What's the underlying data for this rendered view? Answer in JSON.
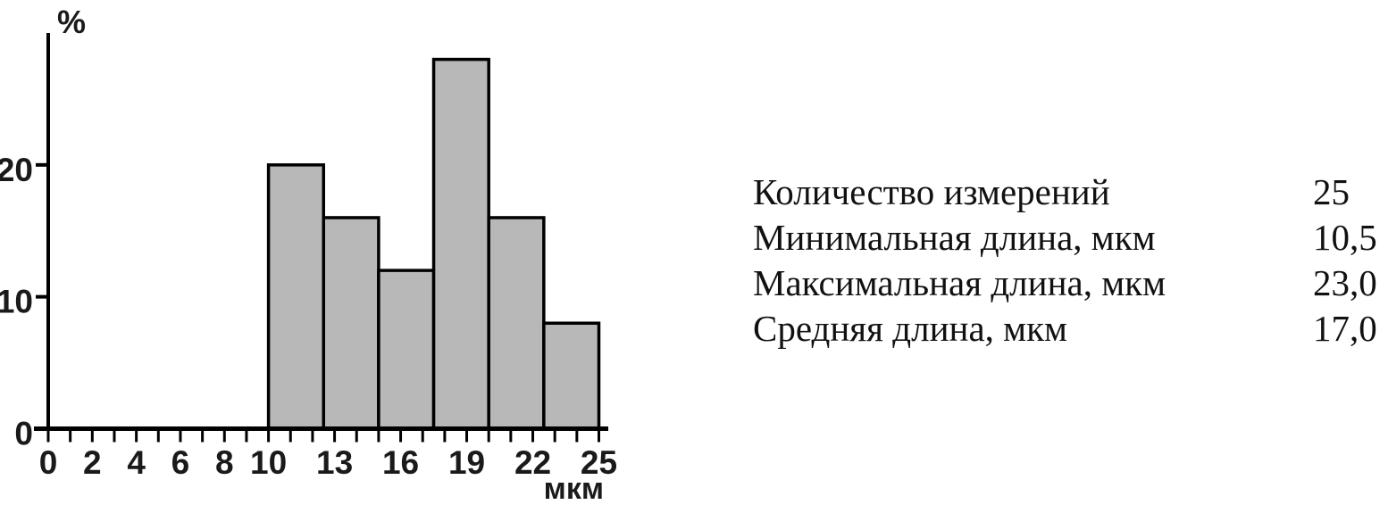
{
  "chart_data": {
    "type": "bar",
    "title": "",
    "ylabel": "%",
    "xlabel": "мкм",
    "xlim": [
      0,
      25
    ],
    "ylim": [
      0,
      30
    ],
    "x_tick_labels": [
      0,
      2,
      4,
      6,
      8,
      10,
      13,
      16,
      19,
      22,
      25
    ],
    "x_minor_tick_step": 1,
    "y_tick_labels": [
      0,
      10,
      20
    ],
    "grid": false,
    "legend": false,
    "bar_fill": "#b8b8b8",
    "bar_stroke": "#000000",
    "bars": [
      {
        "x_start": 10,
        "x_end": 12.5,
        "value": 20
      },
      {
        "x_start": 12.5,
        "x_end": 15,
        "value": 16
      },
      {
        "x_start": 15,
        "x_end": 17.5,
        "value": 12
      },
      {
        "x_start": 17.5,
        "x_end": 20,
        "value": 28
      },
      {
        "x_start": 20,
        "x_end": 22.5,
        "value": 16
      },
      {
        "x_start": 22.5,
        "x_end": 25,
        "value": 8
      }
    ]
  },
  "stats": {
    "rows": [
      {
        "label": "Количество измерений",
        "value": "25"
      },
      {
        "label": "Минимальная длина, мкм",
        "value": "10,5"
      },
      {
        "label": "Максимальная длина, мкм",
        "value": "23,0"
      },
      {
        "label": "Средняя длина, мкм",
        "value": "17,0"
      }
    ]
  }
}
